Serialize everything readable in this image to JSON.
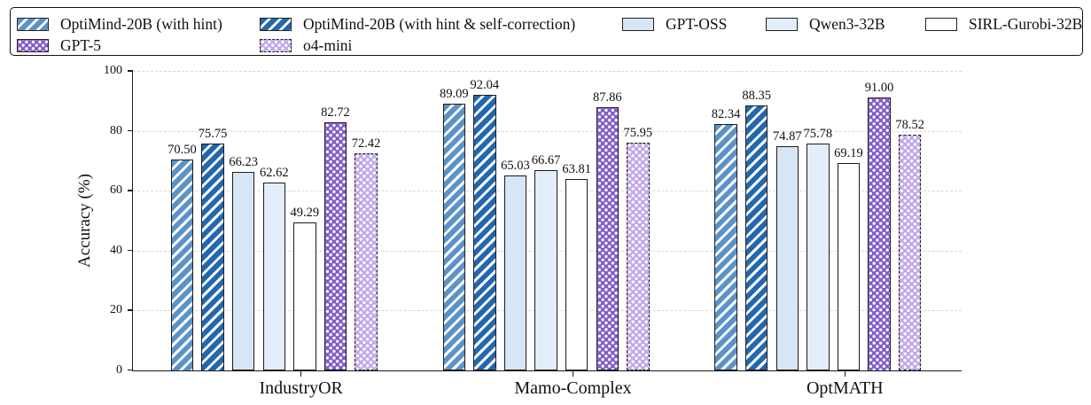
{
  "legend": {
    "position": "top",
    "rows": 2,
    "border_color": "#111111"
  },
  "chart_data": {
    "type": "bar",
    "title": "",
    "xlabel": "",
    "ylabel": "Accuracy (%)",
    "ylim": [
      0,
      100
    ],
    "yticks": [
      0,
      20,
      40,
      60,
      80,
      100
    ],
    "grid": "horizontal-dashed",
    "gridline_color": "#d8d8d8",
    "edge_color": "#1b1b1b",
    "categories": [
      "IndustryOR",
      "Mamo-Complex",
      "OptMATH"
    ],
    "series": [
      {
        "name": "OptiMind-20B (with hint)",
        "color": "#5b93c9",
        "hatch": "diagonal",
        "edge": "solid",
        "values": [
          70.5,
          89.09,
          82.34
        ]
      },
      {
        "name": "OptiMind-20B (with hint & self-correction)",
        "color": "#2367af",
        "hatch": "diagonal",
        "edge": "solid",
        "values": [
          75.75,
          92.04,
          88.35
        ]
      },
      {
        "name": "GPT-OSS",
        "color": "#d7e6f5",
        "hatch": "none",
        "edge": "solid",
        "values": [
          66.23,
          65.03,
          74.87
        ]
      },
      {
        "name": "Qwen3-32B",
        "color": "#e3eefa",
        "hatch": "none",
        "edge": "solid",
        "values": [
          62.62,
          66.67,
          75.78
        ]
      },
      {
        "name": "SIRL-Gurobi-32B",
        "color": "#ffffff",
        "hatch": "none",
        "edge": "solid",
        "values": [
          49.29,
          63.81,
          69.19
        ]
      },
      {
        "name": "GPT-5",
        "color": "#8159ca",
        "hatch": "dots",
        "edge": "solid",
        "values": [
          82.72,
          87.86,
          91.0
        ]
      },
      {
        "name": "o4-mini",
        "color": "#bfa7e8",
        "hatch": "dots",
        "edge": "dashed",
        "values": [
          72.42,
          75.95,
          78.52
        ]
      }
    ],
    "value_label_decimals": 2
  }
}
